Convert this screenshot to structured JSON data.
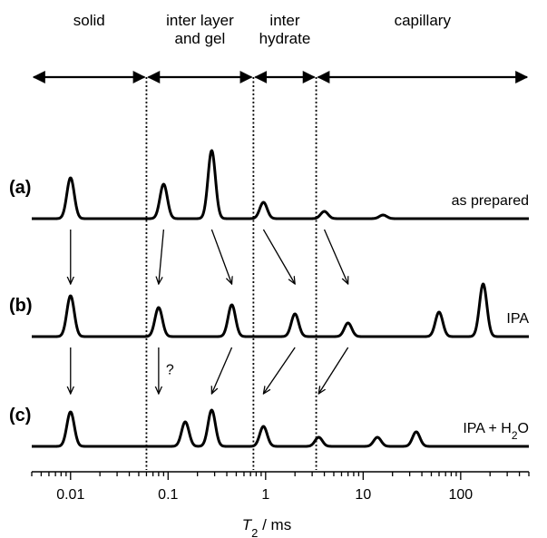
{
  "chart_data": {
    "type": "line",
    "xscale": "log",
    "xlim": [
      0.004,
      500
    ],
    "xlabel_symbol": "T",
    "xlabel_subscript": "2",
    "xlabel_rest": " / ms",
    "x_ticks": [
      "0.01",
      "0.1",
      "1",
      "10",
      "100"
    ],
    "regions": [
      {
        "label_lines": [
          "solid"
        ],
        "from": 0.004,
        "to": 0.06
      },
      {
        "label_lines": [
          "inter layer",
          "and gel"
        ],
        "from": 0.06,
        "to": 0.75
      },
      {
        "label_lines": [
          "inter",
          "hydrate"
        ],
        "from": 0.75,
        "to": 3.3
      },
      {
        "label_lines": [
          "capillary"
        ],
        "from": 3.3,
        "to": 500
      }
    ],
    "boundaries": [
      0.06,
      0.75,
      3.3
    ],
    "series": [
      {
        "id": "a",
        "row_label": "(a)",
        "name": "as prepared",
        "peaks": [
          [
            0.01,
            0.45
          ],
          [
            0.09,
            0.38
          ],
          [
            0.28,
            0.75
          ],
          [
            0.95,
            0.18
          ],
          [
            4.0,
            0.08
          ],
          [
            16,
            0.04
          ]
        ]
      },
      {
        "id": "b",
        "row_label": "(b)",
        "name": "IPA",
        "peaks": [
          [
            0.01,
            0.45
          ],
          [
            0.08,
            0.32
          ],
          [
            0.45,
            0.35
          ],
          [
            2.0,
            0.25
          ],
          [
            7.0,
            0.15
          ],
          [
            60,
            0.27
          ],
          [
            170,
            0.58
          ]
        ]
      },
      {
        "id": "c",
        "row_label": "(c)",
        "name_parts": [
          "IPA + H",
          "2",
          "O"
        ],
        "peaks": [
          [
            0.01,
            0.38
          ],
          [
            0.15,
            0.27
          ],
          [
            0.28,
            0.4
          ],
          [
            0.95,
            0.22
          ],
          [
            3.5,
            0.1
          ],
          [
            14,
            0.1
          ],
          [
            35,
            0.16
          ]
        ]
      }
    ],
    "arrows": [
      {
        "from_series": "a",
        "to_series": "b",
        "from_x": 0.01,
        "to_x": 0.01
      },
      {
        "from_series": "a",
        "to_series": "b",
        "from_x": 0.09,
        "to_x": 0.08
      },
      {
        "from_series": "a",
        "to_series": "b",
        "from_x": 0.28,
        "to_x": 0.45
      },
      {
        "from_series": "a",
        "to_series": "b",
        "from_x": 0.95,
        "to_x": 2.0
      },
      {
        "from_series": "a",
        "to_series": "b",
        "from_x": 4.0,
        "to_x": 7.0
      },
      {
        "from_series": "b",
        "to_series": "c",
        "from_x": 0.01,
        "to_x": 0.01
      },
      {
        "from_series": "b",
        "to_series": "c",
        "from_x": 0.08,
        "to_x": 0.08,
        "label": "?"
      },
      {
        "from_series": "b",
        "to_series": "c",
        "from_x": 0.45,
        "to_x": 0.28
      },
      {
        "from_series": "b",
        "to_series": "c",
        "from_x": 2.0,
        "to_x": 0.95
      },
      {
        "from_series": "b",
        "to_series": "c",
        "from_x": 7.0,
        "to_x": 3.5
      }
    ]
  }
}
